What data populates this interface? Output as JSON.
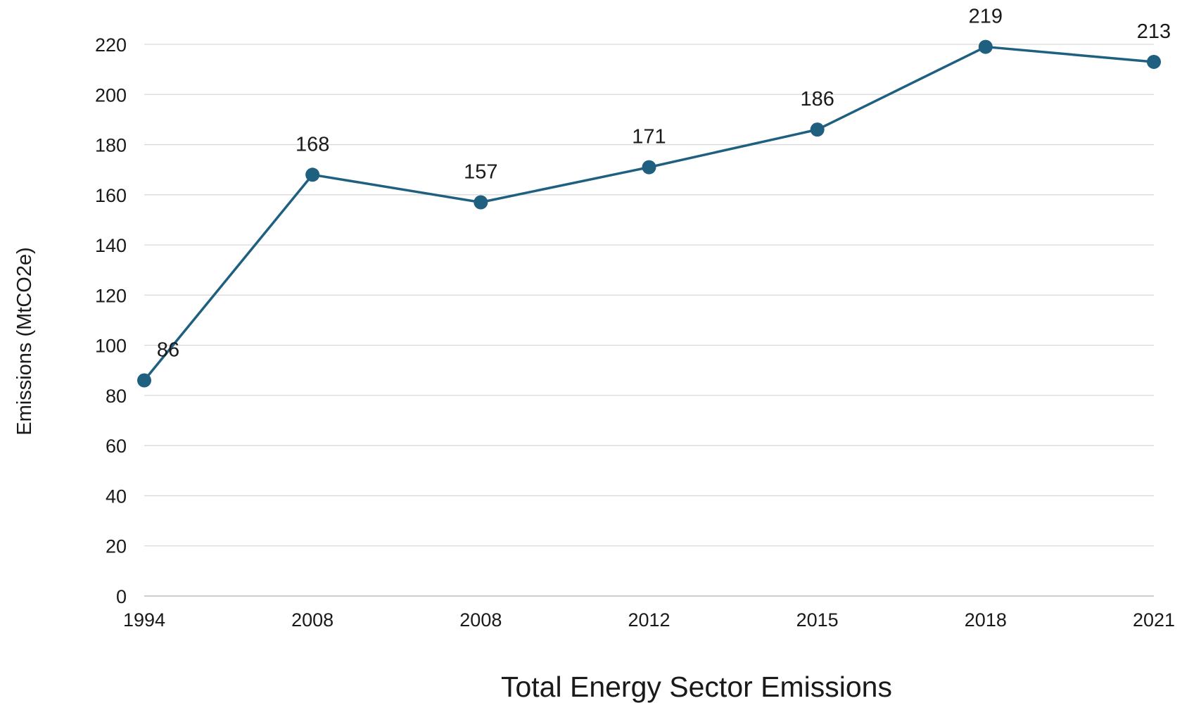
{
  "chart_data": {
    "type": "line",
    "title": "Total Energy Sector Emissions",
    "xlabel": "",
    "ylabel": "Emissions (MtCO2e)",
    "categories": [
      "1994",
      "2008",
      "2008",
      "2012",
      "2015",
      "2018",
      "2021"
    ],
    "series": [
      {
        "values": [
          86,
          168,
          157,
          171,
          186,
          219,
          213
        ]
      }
    ],
    "data_labels": [
      "86",
      "168",
      "157",
      "171",
      "186",
      "219",
      "213"
    ],
    "ylim": [
      0,
      220
    ],
    "y_ticks": [
      0,
      20,
      40,
      60,
      80,
      100,
      120,
      140,
      160,
      180,
      200,
      220
    ],
    "grid": true,
    "legend": "none",
    "colors": {
      "series": "#1f5f80"
    }
  }
}
